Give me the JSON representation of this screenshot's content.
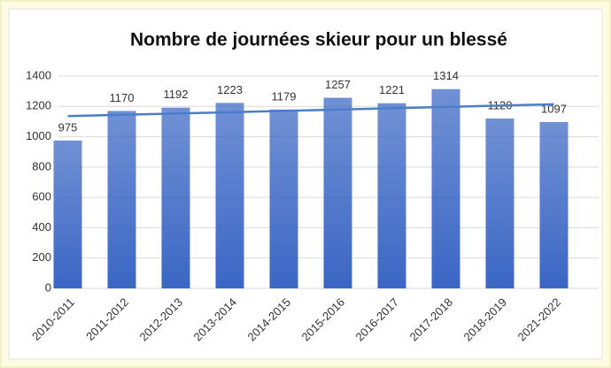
{
  "chart_data": {
    "type": "bar",
    "title": "Nombre de journées skieur pour un blessé",
    "categories": [
      "2010-2011",
      "2011-2012",
      "2012-2013",
      "2013-2014",
      "2014-2015",
      "2015-2016",
      "2016-2017",
      "2017-2018",
      "2018-2019",
      "2021-2022"
    ],
    "values": [
      975,
      1170,
      1192,
      1223,
      1179,
      1257,
      1221,
      1314,
      1120,
      1097
    ],
    "color": "#3a66c4",
    "ylim": [
      0,
      1400
    ],
    "yticks": [
      0,
      200,
      400,
      600,
      800,
      1000,
      1200,
      1400
    ],
    "grid": true,
    "trendline": "linear",
    "trendline_color": "#4a7ec8"
  }
}
